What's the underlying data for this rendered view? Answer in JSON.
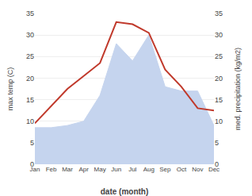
{
  "chart_data": {
    "type": "line",
    "xlabel": "date (month)",
    "ylabel": "max temp (C)",
    "y2label": "med. precipitation (kg/m2)",
    "categories": [
      "Jan",
      "Feb",
      "Mar",
      "Apr",
      "May",
      "Jun",
      "Jul",
      "Aug",
      "Sep",
      "Oct",
      "Nov",
      "Dec"
    ],
    "series": [
      {
        "type": "area",
        "color": "#c5d4ee",
        "values": [
          8.5,
          8.5,
          9.0,
          10.0,
          16.0,
          28.0,
          24.0,
          30.0,
          18.0,
          17.0,
          17.0,
          9.0
        ]
      },
      {
        "type": "line",
        "color": "#c0392b",
        "axis": "y2",
        "values": [
          9.5,
          13.5,
          17.5,
          20.5,
          23.5,
          33.0,
          32.5,
          30.5,
          22.0,
          18.0,
          13.0,
          12.5
        ]
      }
    ],
    "ylim": [
      0,
      35
    ],
    "yticks": [
      0,
      5,
      10,
      15,
      20,
      25,
      30,
      35
    ],
    "y2lim": [
      0,
      35
    ],
    "y2ticks": [
      0,
      5,
      10,
      15,
      20,
      25,
      30,
      35
    ],
    "grid": true
  }
}
